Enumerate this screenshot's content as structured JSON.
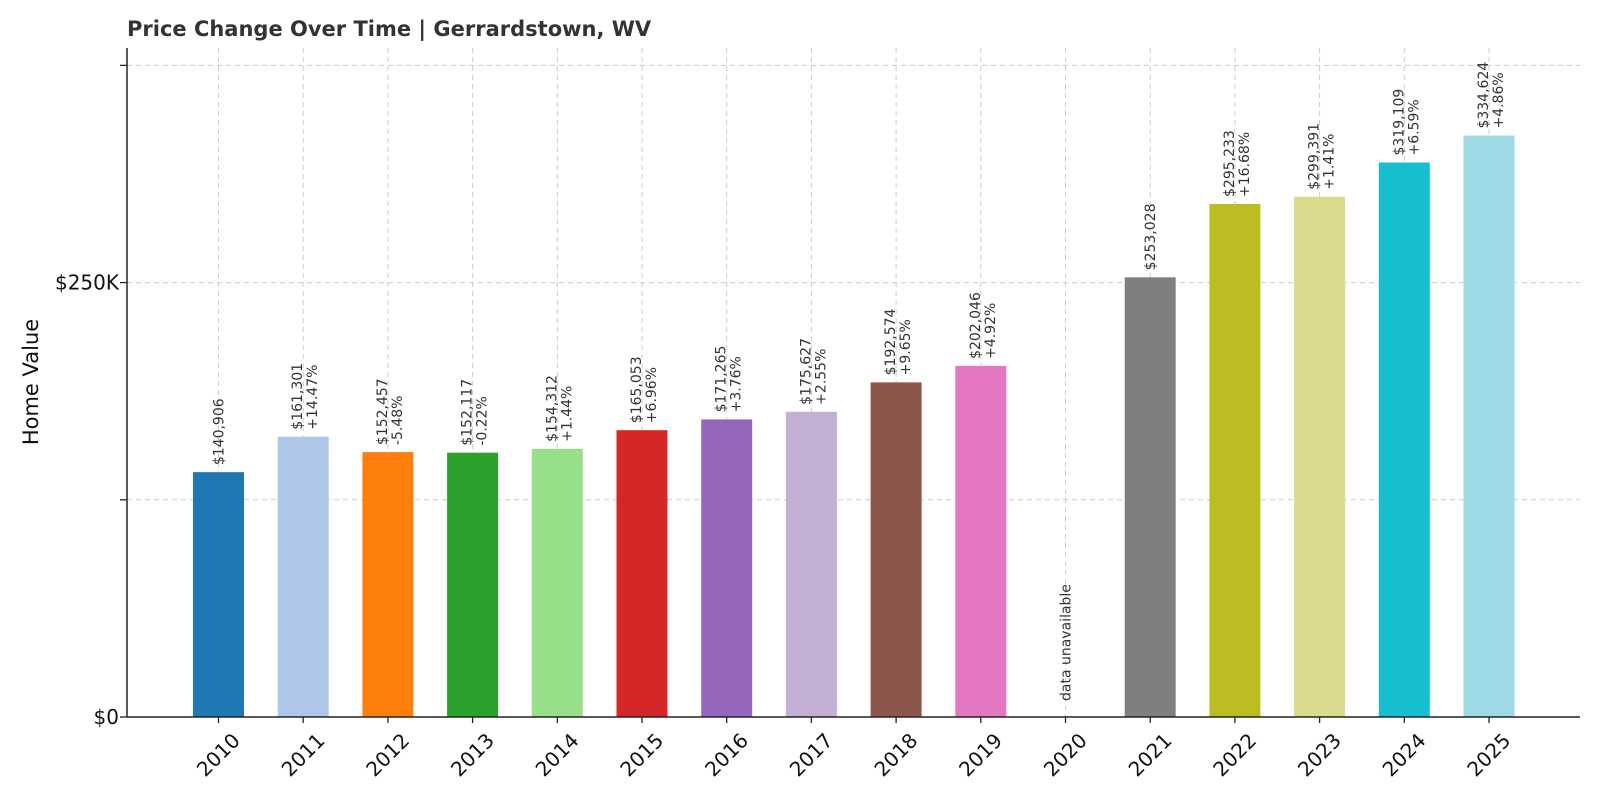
{
  "chart_data": {
    "type": "bar",
    "title": "Price Change Over Time | Gerrardstown, WV",
    "xlabel": "",
    "ylabel": "Home Value",
    "ylim": [
      0,
      385000
    ],
    "yticks": [
      {
        "value": 0,
        "label": "$0"
      },
      {
        "value": 250000,
        "label": "$250K"
      }
    ],
    "grid": true,
    "categories": [
      "2010",
      "2011",
      "2012",
      "2013",
      "2014",
      "2015",
      "2016",
      "2017",
      "2018",
      "2019",
      "2020",
      "2021",
      "2022",
      "2023",
      "2024",
      "2025"
    ],
    "values": [
      140906,
      161301,
      152457,
      152117,
      154312,
      165053,
      171265,
      175627,
      192574,
      202046,
      null,
      253028,
      295233,
      299391,
      319109,
      334624
    ],
    "value_labels": [
      "$140,906",
      "$161,301",
      "$152,457",
      "$152,117",
      "$154,312",
      "$165,053",
      "$171,265",
      "$175,627",
      "$192,574",
      "$202,046",
      "",
      "$253,028",
      "$295,233",
      "$299,391",
      "$319,109",
      "$334,624"
    ],
    "change_labels": [
      "",
      "+14.47%",
      "-5.48%",
      "-0.22%",
      "+1.44%",
      "+6.96%",
      "+3.76%",
      "+2.55%",
      "+9.65%",
      "+4.92%",
      "",
      "",
      "+16.68%",
      "+1.41%",
      "+6.59%",
      "+4.86%"
    ],
    "missing_label": "data unavailable",
    "colors": [
      "#1f77b4",
      "#aec7e8",
      "#ff7f0e",
      "#2ca02c",
      "#98df8a",
      "#d62728",
      "#9467bd",
      "#c5b0d5",
      "#8c564b",
      "#e377c2",
      "#7f7f7f",
      "#7f7f7f",
      "#bcbd22",
      "#dbdb8d",
      "#17becf",
      "#9edae5"
    ]
  }
}
